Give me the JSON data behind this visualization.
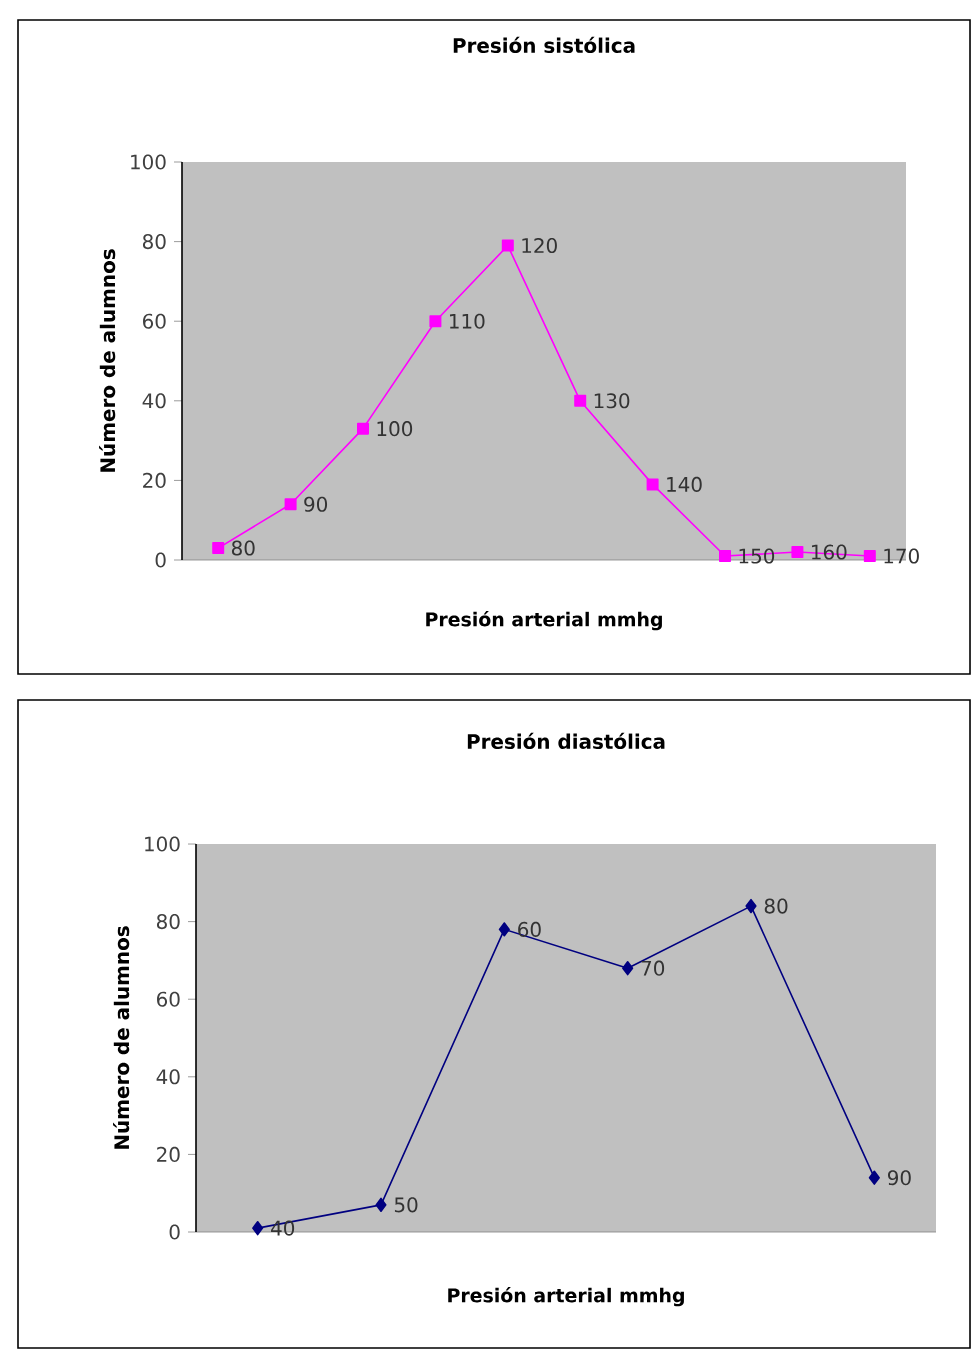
{
  "chart_data": [
    {
      "type": "line",
      "title": "Presión sistólica",
      "xlabel": "Presión arterial mmhg",
      "ylabel": "Número de alumnos",
      "categories": [
        "80",
        "90",
        "100",
        "110",
        "120",
        "130",
        "140",
        "150",
        "160",
        "170"
      ],
      "marker": "square",
      "tick_labels": "y",
      "ylim": [
        0,
        100
      ],
      "yticks": [
        0,
        20,
        40,
        60,
        80,
        100
      ],
      "series": [
        {
          "color": "#ff00ff",
          "values": [
            3,
            14,
            33,
            60,
            79,
            40,
            19,
            1,
            2,
            1
          ]
        }
      ]
    },
    {
      "type": "line",
      "title": "Presión  diastólica",
      "xlabel": "Presión arterial mmhg",
      "ylabel": "Número de alumnos",
      "categories": [
        "40",
        "50",
        "60",
        "70",
        "80",
        "90"
      ],
      "marker": "diamond",
      "tick_labels": "y",
      "ylim": [
        0,
        100
      ],
      "yticks": [
        0,
        20,
        40,
        60,
        80,
        100
      ],
      "series": [
        {
          "color": "#000080",
          "values": [
            1,
            7,
            78,
            68,
            84,
            14
          ]
        }
      ]
    }
  ]
}
